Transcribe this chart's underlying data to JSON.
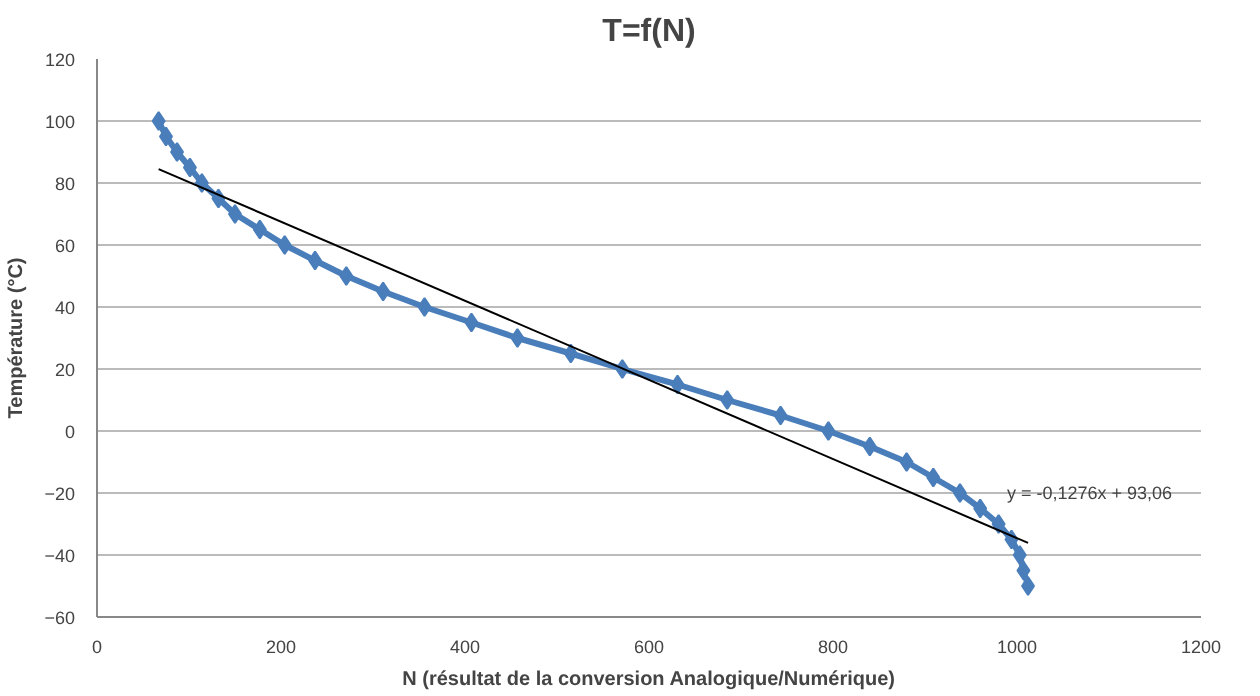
{
  "chart_data": {
    "type": "line",
    "title": "T=f(N)",
    "xlabel": "N (résultat de la conversion Analogique/Numérique)",
    "ylabel": "Température (°C)",
    "xlim": [
      0,
      1200
    ],
    "xticks": [
      0,
      200,
      400,
      600,
      800,
      1000,
      1200
    ],
    "ylim": [
      -60,
      120
    ],
    "yticks": [
      -60,
      -40,
      -20,
      0,
      20,
      40,
      60,
      80,
      100,
      120
    ],
    "grid": "y",
    "marker": "diamond",
    "line_style": "solid",
    "series": [
      {
        "color": "#4a7ebb",
        "x": [
          67,
          75,
          87,
          101,
          114,
          132,
          150,
          177,
          204,
          237,
          271,
          311,
          356,
          407,
          457,
          515,
          571,
          631,
          685,
          743,
          795,
          840,
          880,
          909,
          938,
          960,
          980,
          994,
          1003,
          1007,
          1012
        ],
        "values": [
          100,
          95,
          90,
          85,
          80,
          75,
          70,
          65,
          60,
          55,
          50,
          45,
          40,
          35,
          30,
          25,
          20,
          15,
          10,
          5,
          0,
          -5,
          -10,
          -15,
          -20,
          -25,
          -30,
          -35,
          -40,
          -45,
          -50
        ]
      },
      {
        "color": "#000000",
        "type": "line",
        "marker": "none",
        "x": [
          67,
          1012
        ],
        "values": [
          84.5,
          -36.1
        ]
      }
    ],
    "annotations": [
      "y = -0,1276x + 93,06"
    ]
  }
}
